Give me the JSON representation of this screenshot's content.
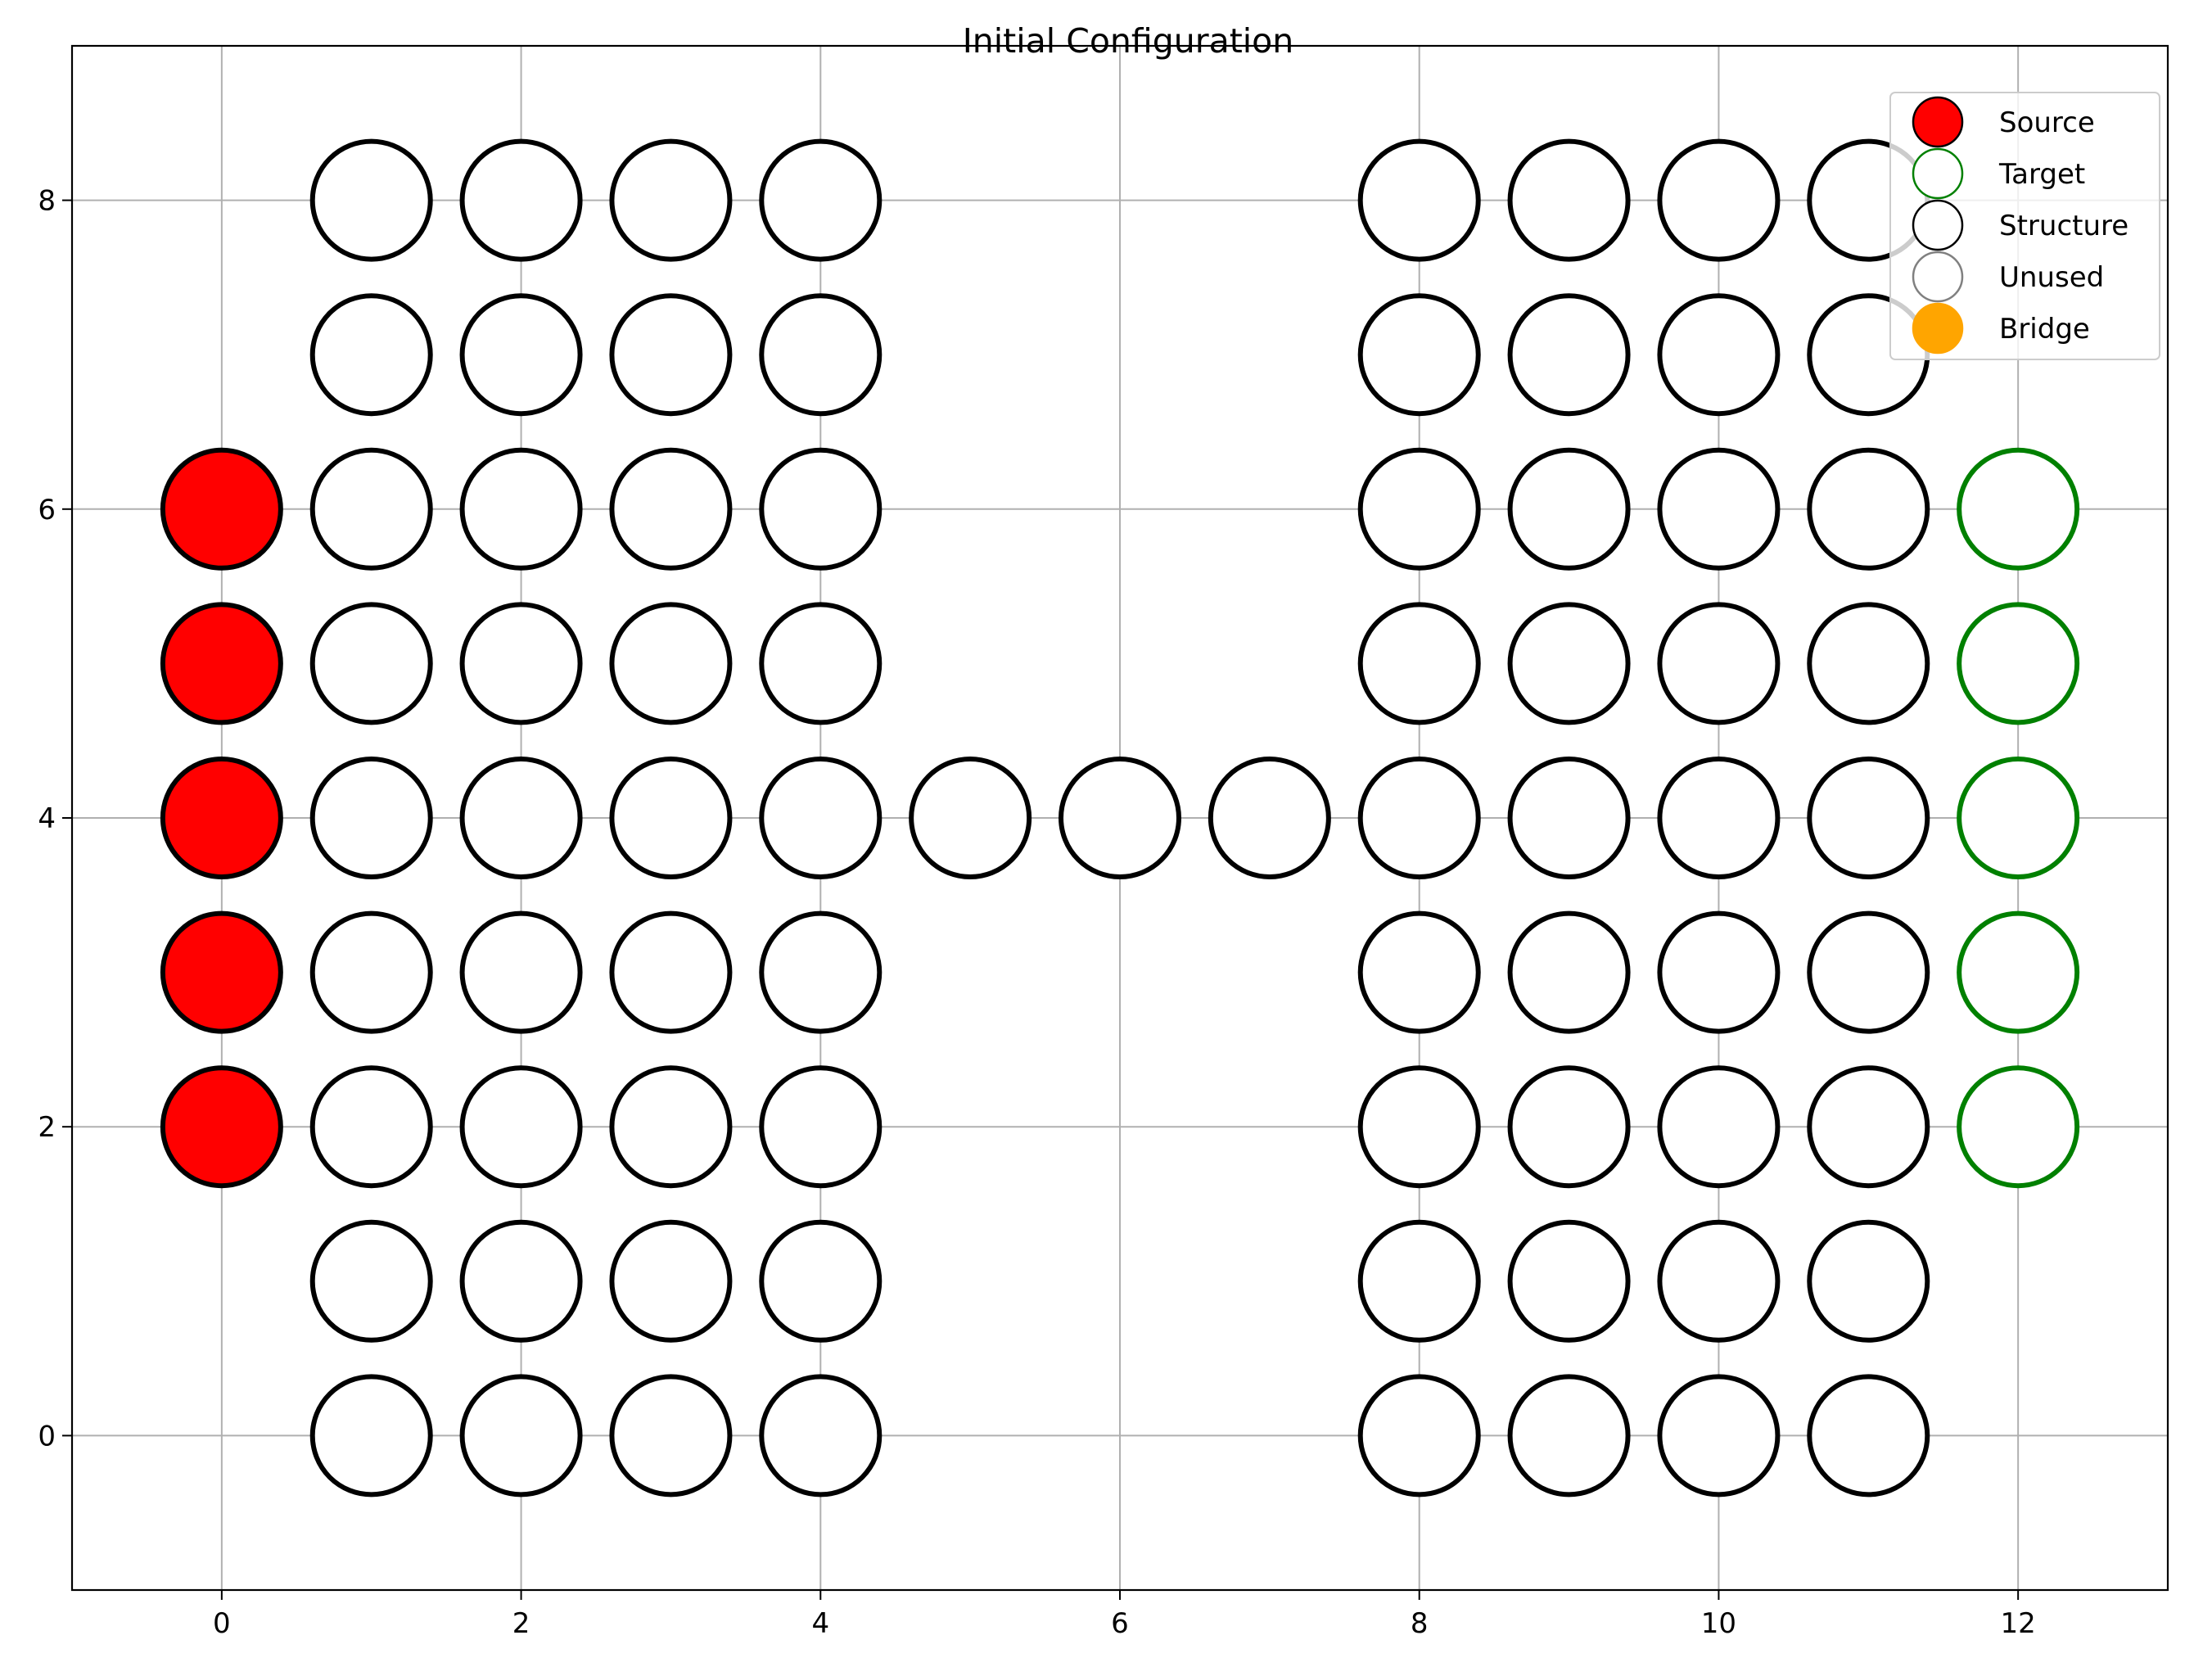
{
  "chart_data": {
    "type": "scatter",
    "title": "Initial Configuration",
    "xlabel": "",
    "ylabel": "",
    "xlim": [
      -1,
      13
    ],
    "ylim": [
      -1,
      9
    ],
    "xticks": [
      0,
      2,
      4,
      6,
      8,
      10,
      12
    ],
    "yticks": [
      0,
      2,
      4,
      6,
      8
    ],
    "grid": true,
    "legend": {
      "position": "top-right",
      "entries": [
        {
          "label": "Source",
          "fill": "#ff0000",
          "edge": "#000000"
        },
        {
          "label": "Target",
          "fill": "#ffffff",
          "edge": "#008000"
        },
        {
          "label": "Structure",
          "fill": "#ffffff",
          "edge": "#000000"
        },
        {
          "label": "Unused",
          "fill": "#ffffff",
          "edge": "#808080"
        },
        {
          "label": "Bridge",
          "fill": "#ffa500",
          "edge": "#ffa500"
        }
      ]
    },
    "series": [
      {
        "name": "Source",
        "fill": "#ff0000",
        "edge": "#000000",
        "points": [
          [
            0,
            2
          ],
          [
            0,
            3
          ],
          [
            0,
            4
          ],
          [
            0,
            5
          ],
          [
            0,
            6
          ]
        ]
      },
      {
        "name": "Target",
        "fill": "#ffffff",
        "edge": "#008000",
        "points": [
          [
            12,
            2
          ],
          [
            12,
            3
          ],
          [
            12,
            4
          ],
          [
            12,
            5
          ],
          [
            12,
            6
          ]
        ]
      },
      {
        "name": "Structure",
        "fill": "#ffffff",
        "edge": "#000000",
        "points": [
          [
            1,
            0
          ],
          [
            1,
            1
          ],
          [
            1,
            2
          ],
          [
            1,
            3
          ],
          [
            1,
            4
          ],
          [
            1,
            5
          ],
          [
            1,
            6
          ],
          [
            1,
            7
          ],
          [
            1,
            8
          ],
          [
            2,
            0
          ],
          [
            2,
            1
          ],
          [
            2,
            2
          ],
          [
            2,
            3
          ],
          [
            2,
            4
          ],
          [
            2,
            5
          ],
          [
            2,
            6
          ],
          [
            2,
            7
          ],
          [
            2,
            8
          ],
          [
            3,
            0
          ],
          [
            3,
            1
          ],
          [
            3,
            2
          ],
          [
            3,
            3
          ],
          [
            3,
            4
          ],
          [
            3,
            5
          ],
          [
            3,
            6
          ],
          [
            3,
            7
          ],
          [
            3,
            8
          ],
          [
            4,
            0
          ],
          [
            4,
            1
          ],
          [
            4,
            2
          ],
          [
            4,
            3
          ],
          [
            4,
            4
          ],
          [
            4,
            5
          ],
          [
            4,
            6
          ],
          [
            4,
            7
          ],
          [
            4,
            8
          ],
          [
            5,
            4
          ],
          [
            6,
            4
          ],
          [
            7,
            4
          ],
          [
            8,
            0
          ],
          [
            8,
            1
          ],
          [
            8,
            2
          ],
          [
            8,
            3
          ],
          [
            8,
            4
          ],
          [
            8,
            5
          ],
          [
            8,
            6
          ],
          [
            8,
            7
          ],
          [
            8,
            8
          ],
          [
            9,
            0
          ],
          [
            9,
            1
          ],
          [
            9,
            2
          ],
          [
            9,
            3
          ],
          [
            9,
            4
          ],
          [
            9,
            5
          ],
          [
            9,
            6
          ],
          [
            9,
            7
          ],
          [
            9,
            8
          ],
          [
            10,
            0
          ],
          [
            10,
            1
          ],
          [
            10,
            2
          ],
          [
            10,
            3
          ],
          [
            10,
            4
          ],
          [
            10,
            5
          ],
          [
            10,
            6
          ],
          [
            10,
            7
          ],
          [
            10,
            8
          ],
          [
            11,
            0
          ],
          [
            11,
            1
          ],
          [
            11,
            2
          ],
          [
            11,
            3
          ],
          [
            11,
            4
          ],
          [
            11,
            5
          ],
          [
            11,
            6
          ],
          [
            11,
            7
          ],
          [
            11,
            8
          ]
        ]
      }
    ]
  }
}
